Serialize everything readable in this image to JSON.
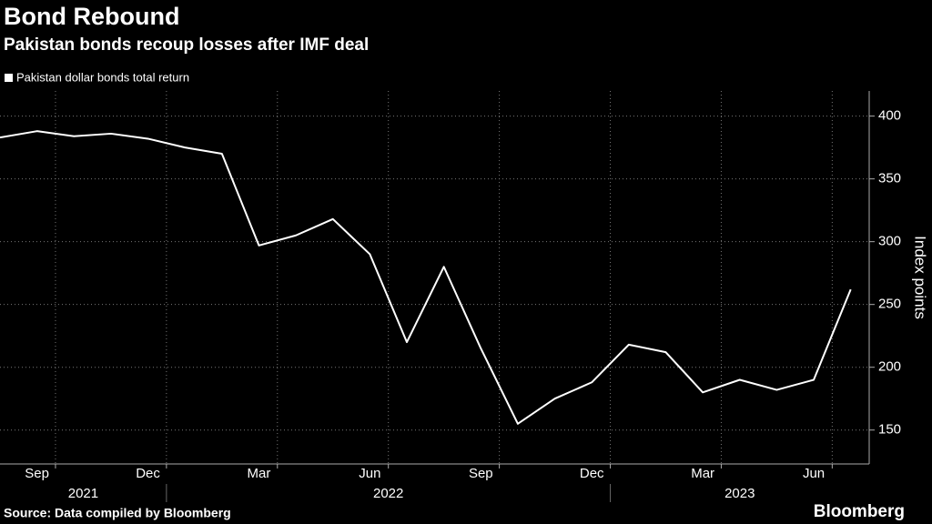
{
  "chart_data": {
    "type": "line",
    "title": "Bond Rebound",
    "subtitle": "Pakistan bonds recoup losses after IMF deal",
    "y_axis_label": "Index points",
    "source": "Source: Data compiled by Bloomberg",
    "brand": "Bloomberg",
    "x": [
      "2021-08",
      "2021-09",
      "2021-10",
      "2021-11",
      "2021-12",
      "2022-01",
      "2022-02",
      "2022-03",
      "2022-04",
      "2022-05",
      "2022-06",
      "2022-07",
      "2022-08",
      "2022-09",
      "2022-10",
      "2022-11",
      "2022-12",
      "2023-01",
      "2023-02",
      "2023-03",
      "2023-04",
      "2023-05",
      "2023-06",
      "2023-07"
    ],
    "series": [
      {
        "name": "Pakistan dollar bonds total return",
        "color": "#ffffff",
        "values": [
          383,
          388,
          384,
          386,
          382,
          375,
          370,
          297,
          305,
          318,
          290,
          220,
          280,
          215,
          155,
          175,
          188,
          218,
          212,
          180,
          190,
          182,
          190,
          262
        ]
      }
    ],
    "xlim": [
      "2021-08",
      "2023-07"
    ],
    "xticks": [
      {
        "value": "2021-09",
        "label": "Sep"
      },
      {
        "value": "2021-12",
        "label": "Dec"
      },
      {
        "value": "2022-03",
        "label": "Mar"
      },
      {
        "value": "2022-06",
        "label": "Jun"
      },
      {
        "value": "2022-09",
        "label": "Sep"
      },
      {
        "value": "2022-12",
        "label": "Dec"
      },
      {
        "value": "2023-03",
        "label": "Mar"
      },
      {
        "value": "2023-06",
        "label": "Jun"
      }
    ],
    "years": [
      "2021",
      "2022",
      "2023"
    ],
    "ylim": [
      123,
      420
    ],
    "yticks": [
      150,
      200,
      250,
      300,
      350,
      400
    ],
    "grid": true
  }
}
